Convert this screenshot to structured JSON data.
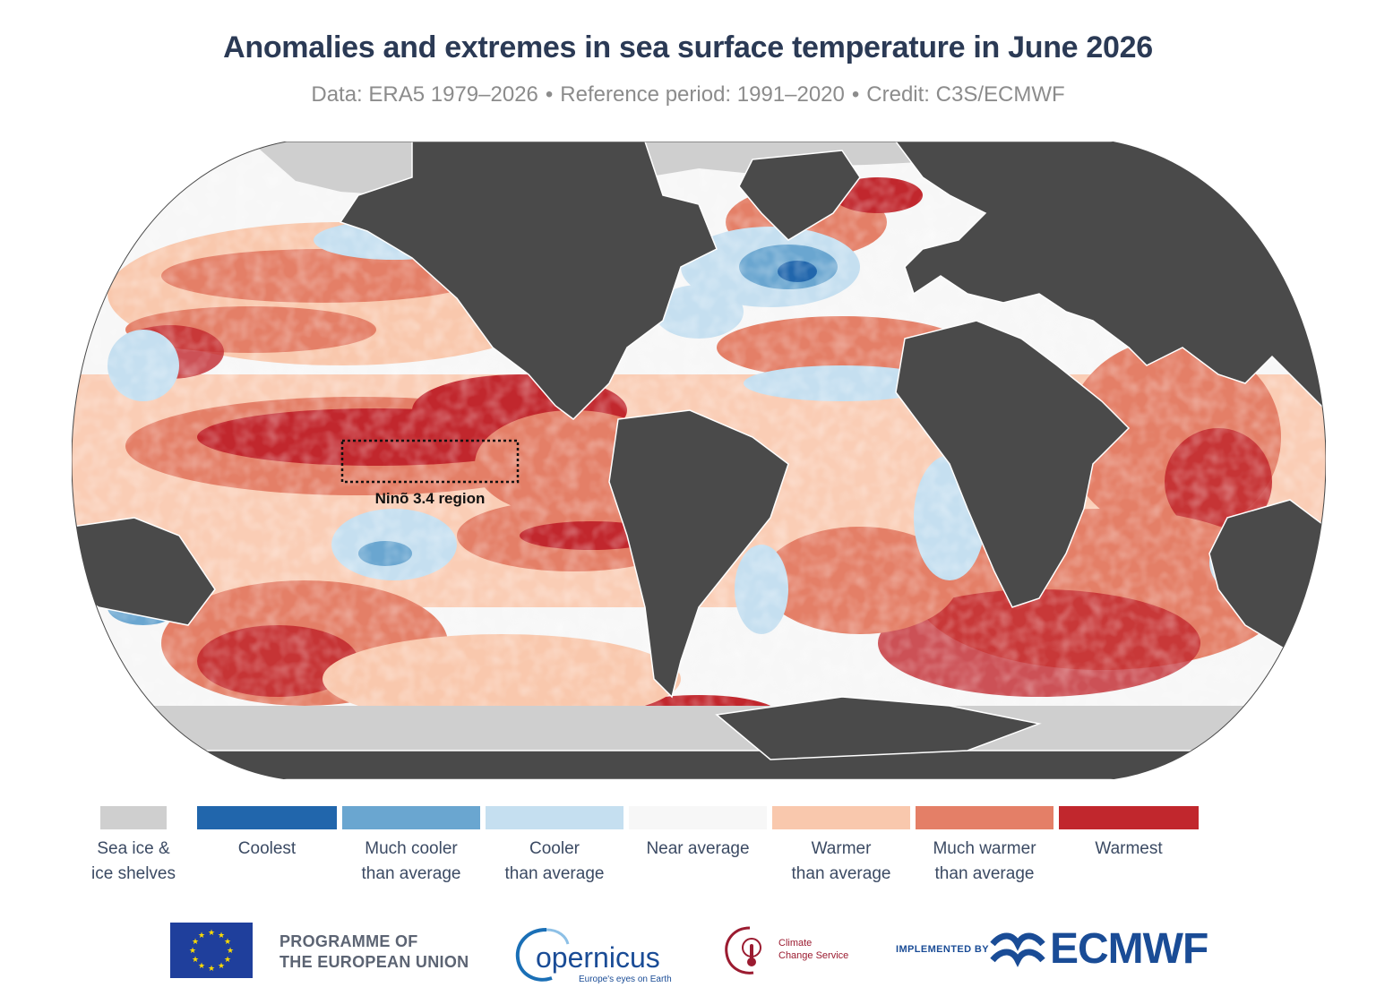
{
  "title": "Anomalies and extremes in sea surface temperature in June 2026",
  "subtitle": {
    "data": "Data: ERA5 1979–2026",
    "reference": "Reference period: 1991–2020",
    "credit": "Credit: C3S/ECMWF",
    "separator": "•"
  },
  "map": {
    "annotation": "Ninõ 3.4 region",
    "colors": {
      "ocean_background": "#f7f7f7",
      "land": "#4a4a4a",
      "sea_ice": "#cfcfcf"
    }
  },
  "legend": [
    {
      "label_line1": "Sea ice &",
      "label_line2": "ice shelves",
      "color": "#cfcfcf"
    },
    {
      "label_line1": "Coolest",
      "label_line2": "",
      "color": "#2166ac"
    },
    {
      "label_line1": "Much cooler",
      "label_line2": "than average",
      "color": "#6aa6d0"
    },
    {
      "label_line1": "Cooler",
      "label_line2": "than average",
      "color": "#c5dff0"
    },
    {
      "label_line1": "Near average",
      "label_line2": "",
      "color": "#f7f7f7"
    },
    {
      "label_line1": "Warmer",
      "label_line2": "than average",
      "color": "#f9c8ad"
    },
    {
      "label_line1": "Much warmer",
      "label_line2": "than average",
      "color": "#e47f67"
    },
    {
      "label_line1": "Warmest",
      "label_line2": "",
      "color": "#c1272d"
    }
  ],
  "footer": {
    "eu_line1": "PROGRAMME OF",
    "eu_line2": "THE EUROPEAN UNION",
    "copernicus_word": "opernicus",
    "copernicus_tagline": "Europe's eyes on Earth",
    "c3s_line1": "Climate",
    "c3s_line2": "Change Service",
    "implemented_by": "IMPLEMENTED BY",
    "ecmwf": "ECMWF"
  }
}
